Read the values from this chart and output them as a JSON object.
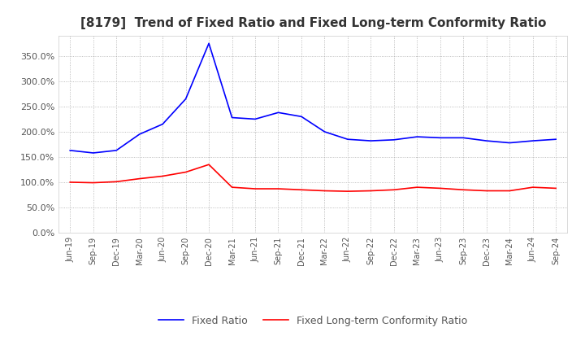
{
  "title": "[8179]  Trend of Fixed Ratio and Fixed Long-term Conformity Ratio",
  "x_labels": [
    "Jun-19",
    "Sep-19",
    "Dec-19",
    "Mar-20",
    "Jun-20",
    "Sep-20",
    "Dec-20",
    "Mar-21",
    "Jun-21",
    "Sep-21",
    "Dec-21",
    "Mar-22",
    "Jun-22",
    "Sep-22",
    "Dec-22",
    "Mar-23",
    "Jun-23",
    "Sep-23",
    "Dec-23",
    "Mar-24",
    "Jun-24",
    "Sep-24"
  ],
  "fixed_ratio": [
    163,
    158,
    163,
    195,
    215,
    265,
    375,
    228,
    225,
    238,
    230,
    200,
    185,
    182,
    184,
    190,
    188,
    188,
    182,
    178,
    182,
    185
  ],
  "fixed_lt_ratio": [
    100,
    99,
    101,
    107,
    112,
    120,
    135,
    90,
    87,
    87,
    85,
    83,
    82,
    83,
    85,
    90,
    88,
    85,
    83,
    83,
    90,
    88
  ],
  "fixed_ratio_color": "#0000FF",
  "fixed_lt_ratio_color": "#FF0000",
  "ylim": [
    0,
    390
  ],
  "yticks": [
    0,
    50,
    100,
    150,
    200,
    250,
    300,
    350
  ],
  "background_color": "#FFFFFF",
  "grid_color": "#AAAAAA",
  "title_fontsize": 11,
  "legend_labels": [
    "Fixed Ratio",
    "Fixed Long-term Conformity Ratio"
  ]
}
